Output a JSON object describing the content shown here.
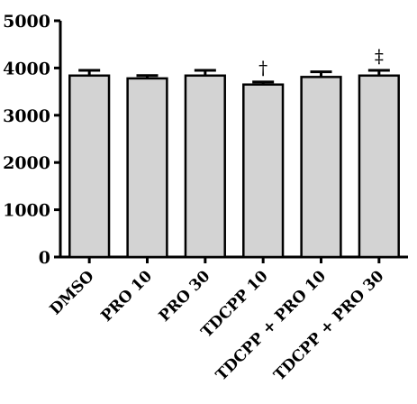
{
  "chart_data": {
    "type": "bar",
    "categories": [
      "DMSO",
      "PRO 10",
      "PRO 30",
      "TDCPP 10",
      "TDCPP + PRO 10",
      "TDCPP + PRO 30"
    ],
    "values": [
      3840,
      3780,
      3840,
      3650,
      3810,
      3840
    ],
    "errors": [
      110,
      60,
      110,
      55,
      110,
      110
    ],
    "annotations": [
      "",
      "",
      "",
      "†",
      "",
      "‡"
    ],
    "ylim": [
      0,
      5000
    ],
    "yticks": [
      0,
      1000,
      2000,
      3000,
      4000,
      5000
    ],
    "ytick_labels": [
      "0",
      "1000",
      "2000",
      "3000",
      "4000",
      "5000"
    ],
    "bar_color": "#d3d3d3",
    "edge_color": "#000000",
    "title": "",
    "xlabel": "",
    "ylabel": "",
    "grid": false
  }
}
